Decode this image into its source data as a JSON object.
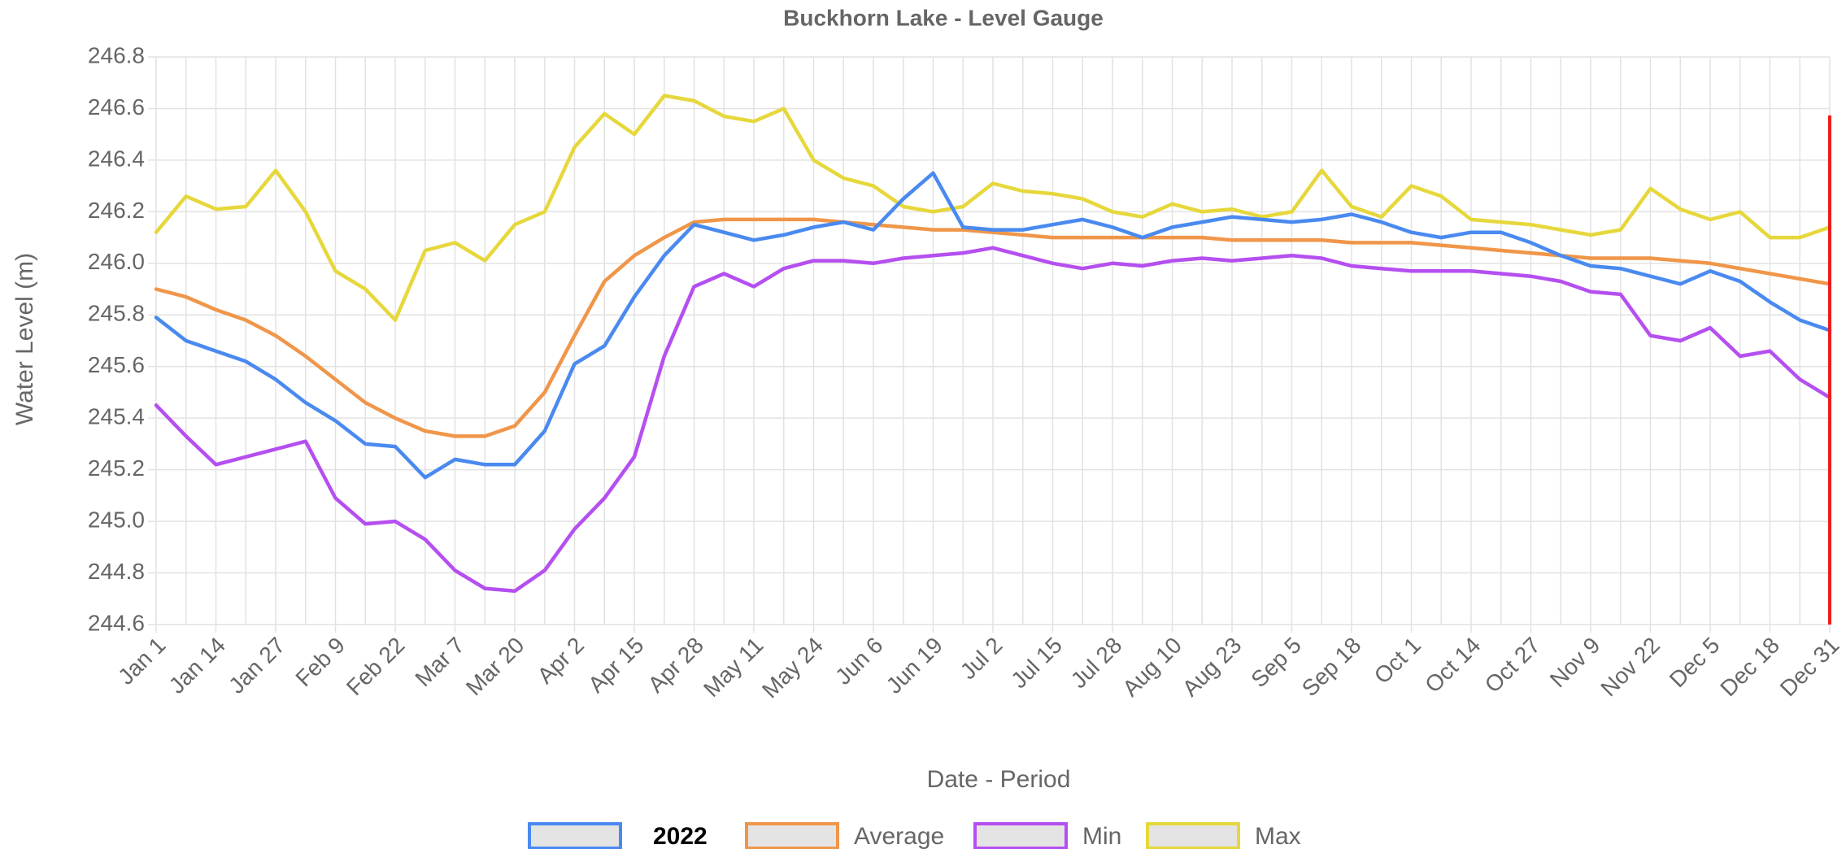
{
  "chart_data": {
    "type": "line",
    "title": "Buckhorn Lake - Level Gauge",
    "x_label": "Date - Period",
    "y_label": "Water Level (m)",
    "categories": [
      "Jan 1",
      null,
      "Jan 14",
      null,
      "Jan 27",
      null,
      "Feb 9",
      null,
      "Feb 22",
      null,
      "Mar 7",
      null,
      "Mar 20",
      null,
      "Apr 2",
      null,
      "Apr 15",
      null,
      "Apr 28",
      null,
      "May 11",
      null,
      "May 24",
      null,
      "Jun 6",
      null,
      "Jun 19",
      null,
      "Jul 2",
      null,
      "Jul 15",
      null,
      "Jul 28",
      null,
      "Aug 10",
      null,
      "Aug 23",
      null,
      "Sep 5",
      null,
      "Sep 18",
      null,
      "Oct 1",
      null,
      "Oct 14",
      null,
      "Oct 27",
      null,
      "Nov 9",
      null,
      "Nov 22",
      null,
      "Dec 5",
      null,
      "Dec 18",
      null,
      "Dec 31"
    ],
    "ylim": [
      244.6,
      246.8
    ],
    "yticks": [
      244.6,
      244.8,
      {
        "value": 245.0,
        "label": "245.0"
      },
      245.2,
      245.4,
      245.6,
      245.8,
      {
        "value": 246.0,
        "label": "246.0"
      },
      246.2,
      246.4,
      246.6,
      246.8
    ],
    "grid": true,
    "legend": "bottom",
    "series": [
      {
        "name": "2022",
        "color": "#4a8af0",
        "values": [
          245.79,
          245.7,
          245.66,
          245.62,
          245.55,
          245.46,
          245.39,
          245.3,
          245.29,
          245.17,
          245.24,
          245.22,
          245.22,
          245.35,
          245.61,
          245.68,
          245.87,
          246.03,
          246.15,
          246.12,
          246.09,
          246.11,
          246.14,
          246.16,
          246.13,
          246.25,
          246.35,
          246.14,
          246.13,
          246.13,
          246.15,
          246.17,
          246.14,
          246.1,
          246.14,
          246.16,
          246.18,
          246.17,
          246.16,
          246.17,
          246.19,
          246.16,
          246.12,
          246.1,
          246.12,
          246.12,
          246.08,
          246.03,
          245.99,
          245.98,
          245.95,
          245.92,
          245.97,
          245.93,
          245.85,
          245.78,
          245.74
        ]
      },
      {
        "name": "Average",
        "color": "#f0964a",
        "values": [
          245.9,
          245.87,
          245.82,
          245.78,
          245.72,
          245.64,
          245.55,
          245.46,
          245.4,
          245.35,
          245.33,
          245.33,
          245.37,
          245.5,
          245.72,
          245.93,
          246.03,
          246.1,
          246.16,
          246.17,
          246.17,
          246.17,
          246.17,
          246.16,
          246.15,
          246.14,
          246.13,
          246.13,
          246.12,
          246.11,
          246.1,
          246.1,
          246.1,
          246.1,
          246.1,
          246.1,
          246.09,
          246.09,
          246.09,
          246.09,
          246.08,
          246.08,
          246.08,
          246.07,
          246.06,
          246.05,
          246.04,
          246.03,
          246.02,
          246.02,
          246.02,
          246.01,
          246.0,
          245.98,
          245.96,
          245.94,
          245.92
        ]
      },
      {
        "name": "Min",
        "color": "#b54ff0",
        "values": [
          245.45,
          245.33,
          245.22,
          245.25,
          245.28,
          245.31,
          245.09,
          244.99,
          245.0,
          244.93,
          244.81,
          244.74,
          244.73,
          244.81,
          244.97,
          245.09,
          245.25,
          245.64,
          245.91,
          245.96,
          245.91,
          245.98,
          246.01,
          246.01,
          246.0,
          246.02,
          246.03,
          246.04,
          246.06,
          246.03,
          246.0,
          245.98,
          246.0,
          245.99,
          246.01,
          246.02,
          246.01,
          246.02,
          246.03,
          246.02,
          245.99,
          245.98,
          245.97,
          245.97,
          245.97,
          245.96,
          245.95,
          245.93,
          245.89,
          245.88,
          245.72,
          245.7,
          245.75,
          245.64,
          245.66,
          245.55,
          245.48
        ]
      },
      {
        "name": "Max",
        "color": "#e6d83c",
        "values": [
          246.12,
          246.26,
          246.21,
          246.22,
          246.36,
          246.2,
          245.97,
          245.9,
          245.78,
          246.05,
          246.08,
          246.01,
          246.15,
          246.2,
          246.45,
          246.58,
          246.5,
          246.65,
          246.63,
          246.57,
          246.55,
          246.6,
          246.4,
          246.33,
          246.3,
          246.22,
          246.2,
          246.22,
          246.31,
          246.28,
          246.27,
          246.25,
          246.2,
          246.18,
          246.23,
          246.2,
          246.21,
          246.18,
          246.2,
          246.36,
          246.22,
          246.18,
          246.3,
          246.26,
          246.17,
          246.16,
          246.15,
          246.13,
          246.11,
          246.13,
          246.29,
          246.21,
          246.17,
          246.2,
          246.1,
          246.1,
          246.14
        ]
      }
    ]
  }
}
